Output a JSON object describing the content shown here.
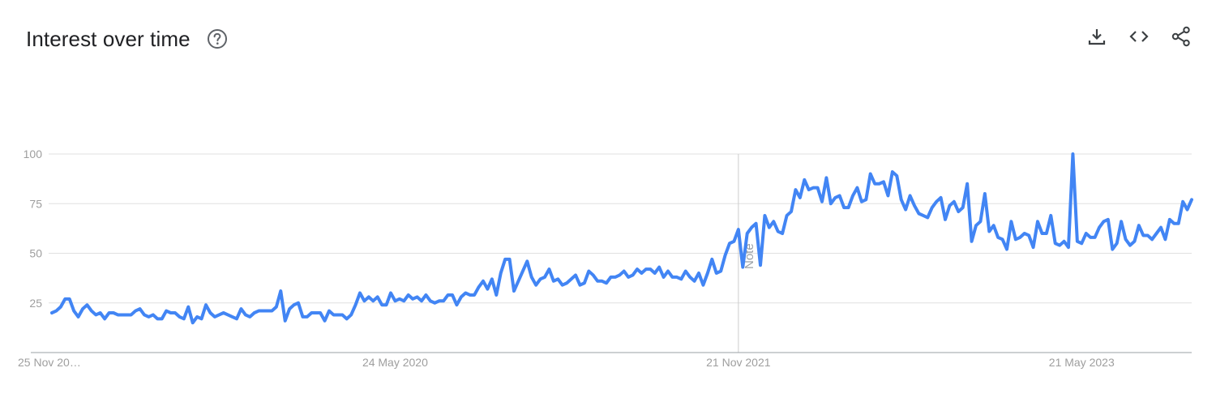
{
  "widget": {
    "title": "Interest over time"
  },
  "icons": {
    "help": "help-circle-icon",
    "download": "download-icon",
    "embed": "embed-code-icon",
    "share": "share-icon"
  },
  "colors": {
    "line": "#4285f4",
    "grid": "#e0e0e0",
    "axis": "#9aa0a6",
    "tick_text": "#9e9e9e",
    "note_line": "#cccccc"
  },
  "chart_data": {
    "type": "line",
    "title": "Interest over time",
    "xlabel": "",
    "ylabel": "",
    "ylim": [
      0,
      100
    ],
    "yticks": [
      25,
      50,
      75,
      100
    ],
    "xticks": [
      {
        "week": 0,
        "label": "25 Nov 20…"
      },
      {
        "week": 78,
        "label": "24 May 2020"
      },
      {
        "week": 156,
        "label": "21 Nov 2021"
      },
      {
        "week": 234,
        "label": "21 May 2023"
      }
    ],
    "x_start": "2018-11-25",
    "x_interval": "weekly",
    "annotations": [
      {
        "week": 156,
        "label": "Note"
      }
    ],
    "grid": true,
    "legend": "none",
    "series": [
      {
        "values": [
          20,
          21,
          23,
          27,
          27,
          21,
          18,
          22,
          24,
          21,
          19,
          20,
          17,
          20,
          20,
          19,
          19,
          19,
          19,
          21,
          22,
          19,
          18,
          19,
          17,
          17,
          21,
          20,
          20,
          18,
          17,
          23,
          15,
          18,
          17,
          24,
          20,
          18,
          19,
          20,
          19,
          18,
          17,
          22,
          19,
          18,
          20,
          21,
          21,
          21,
          21,
          23,
          31,
          16,
          22,
          24,
          25,
          18,
          18,
          20,
          20,
          20,
          16,
          21,
          19,
          19,
          19,
          17,
          19,
          24,
          30,
          26,
          28,
          26,
          28,
          24,
          24,
          30,
          26,
          27,
          26,
          29,
          27,
          28,
          26,
          29,
          26,
          25,
          26,
          26,
          29,
          29,
          24,
          28,
          30,
          29,
          29,
          33,
          36,
          32,
          37,
          29,
          40,
          47,
          47,
          31,
          36,
          41,
          46,
          38,
          34,
          37,
          38,
          42,
          36,
          37,
          34,
          35,
          37,
          39,
          34,
          35,
          41,
          39,
          36,
          36,
          35,
          38,
          38,
          39,
          41,
          38,
          39,
          42,
          40,
          42,
          42,
          40,
          43,
          38,
          41,
          38,
          38,
          37,
          41,
          38,
          36,
          40,
          34,
          40,
          47,
          40,
          41,
          49,
          55,
          56,
          62,
          43,
          60,
          63,
          65,
          44,
          69,
          63,
          66,
          61,
          60,
          69,
          71,
          82,
          78,
          87,
          82,
          83,
          83,
          76,
          88,
          75,
          78,
          79,
          73,
          73,
          79,
          83,
          76,
          77,
          90,
          85,
          85,
          86,
          79,
          91,
          89,
          77,
          72,
          79,
          74,
          70,
          69,
          68,
          73,
          76,
          78,
          67,
          74,
          76,
          71,
          73,
          85,
          56,
          64,
          66,
          80,
          61,
          64,
          58,
          57,
          52,
          66,
          57,
          58,
          60,
          59,
          53,
          66,
          60,
          60,
          69,
          55,
          54,
          56,
          53,
          100,
          56,
          55,
          60,
          58,
          58,
          63,
          66,
          67,
          52,
          55,
          66,
          57,
          54,
          56,
          64,
          59,
          59,
          57,
          60,
          63,
          57,
          67,
          65,
          65,
          76,
          72,
          77
        ]
      }
    ]
  }
}
